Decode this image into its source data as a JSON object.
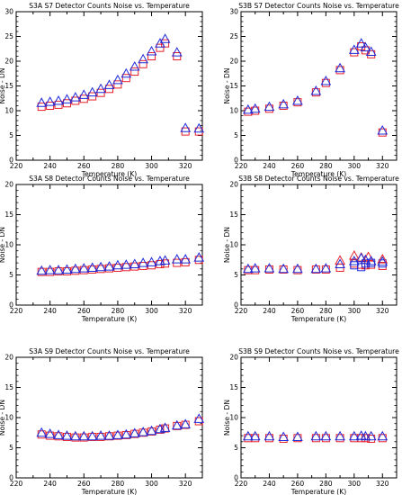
{
  "colors": {
    "red": "#e8202a",
    "blue": "#1f2bd9",
    "axis": "#000000"
  },
  "chart_data": [
    {
      "type": "scatter",
      "title": "S3A S7 Detector Counts Noise vs. Temperature",
      "xlabel": "Temperature (K)",
      "ylabel": "Noise - DN",
      "xlim": [
        220,
        330
      ],
      "ylim": [
        0,
        30
      ],
      "xticks": [
        220,
        240,
        260,
        280,
        300,
        320
      ],
      "yticks": [
        0,
        5,
        10,
        15,
        20,
        25,
        30
      ],
      "grid": false,
      "series": [
        {
          "marker": "square",
          "color": "red",
          "x": [
            235,
            240,
            245,
            250,
            255,
            260,
            265,
            270,
            275,
            280,
            285,
            290,
            295,
            300,
            305,
            308,
            315,
            320,
            328
          ],
          "y": [
            10.8,
            11.0,
            11.2,
            11.5,
            12.0,
            12.4,
            12.9,
            13.6,
            14.4,
            15.3,
            16.6,
            17.9,
            19.4,
            21.0,
            22.7,
            23.6,
            21.0,
            5.8,
            5.8
          ]
        },
        {
          "marker": "triangle",
          "color": "blue",
          "x": [
            235,
            240,
            245,
            250,
            255,
            260,
            265,
            270,
            275,
            280,
            285,
            290,
            295,
            300,
            305,
            308,
            315,
            320,
            328
          ],
          "y": [
            11.6,
            11.8,
            12.0,
            12.3,
            12.7,
            13.2,
            13.7,
            14.4,
            15.2,
            16.2,
            17.5,
            18.9,
            20.4,
            22.0,
            23.6,
            24.5,
            21.8,
            6.5,
            6.4
          ]
        }
      ]
    },
    {
      "type": "scatter",
      "title": "S3B S7 Detector Counts Noise vs. Temperature",
      "xlabel": "Temperature (K)",
      "ylabel": "Noise - DN",
      "xlim": [
        220,
        330
      ],
      "ylim": [
        0,
        30
      ],
      "xticks": [
        220,
        240,
        260,
        280,
        300,
        320
      ],
      "yticks": [
        0,
        5,
        10,
        15,
        20,
        25,
        30
      ],
      "grid": false,
      "series": [
        {
          "marker": "square",
          "color": "red",
          "x": [
            225,
            230,
            240,
            250,
            260,
            273,
            280,
            290,
            300,
            305,
            308,
            312,
            320
          ],
          "y": [
            9.8,
            10.0,
            10.4,
            11.0,
            11.7,
            13.7,
            15.6,
            18.2,
            21.8,
            23.0,
            22.2,
            21.4,
            5.6
          ]
        },
        {
          "marker": "triangle",
          "color": "blue",
          "x": [
            225,
            230,
            240,
            250,
            260,
            273,
            280,
            290,
            300,
            305,
            308,
            312,
            320
          ],
          "y": [
            10.2,
            10.4,
            10.8,
            11.3,
            12.0,
            14.0,
            16.0,
            18.6,
            22.3,
            23.6,
            22.8,
            21.9,
            6.0
          ]
        }
      ]
    },
    {
      "type": "scatter",
      "title": "S3A S8 Detector Counts Noise vs. Temperature",
      "xlabel": "Temperature (K)",
      "ylabel": "Noise - DN",
      "xlim": [
        220,
        330
      ],
      "ylim": [
        0,
        20
      ],
      "xticks": [
        220,
        240,
        260,
        280,
        300,
        320
      ],
      "yticks": [
        0,
        5,
        10,
        15,
        20
      ],
      "grid": false,
      "series": [
        {
          "marker": "square",
          "color": "red",
          "x": [
            235,
            240,
            245,
            250,
            255,
            260,
            265,
            270,
            275,
            280,
            285,
            290,
            295,
            300,
            305,
            308,
            315,
            320,
            328
          ],
          "y": [
            5.5,
            5.5,
            5.6,
            5.6,
            5.7,
            5.8,
            5.9,
            6.0,
            6.1,
            6.2,
            6.3,
            6.4,
            6.5,
            6.6,
            6.8,
            6.9,
            7.0,
            7.1,
            7.5
          ]
        },
        {
          "marker": "triangle",
          "color": "blue",
          "x": [
            235,
            240,
            245,
            250,
            255,
            260,
            265,
            270,
            275,
            280,
            285,
            290,
            295,
            300,
            305,
            308,
            315,
            320,
            328
          ],
          "y": [
            5.7,
            5.8,
            5.8,
            5.9,
            6.0,
            6.1,
            6.2,
            6.3,
            6.4,
            6.6,
            6.7,
            6.8,
            7.0,
            7.1,
            7.3,
            7.4,
            7.6,
            7.6,
            7.9
          ]
        }
      ]
    },
    {
      "type": "scatter",
      "title": "S3B S8 Detector Counts Noise vs. Temperature",
      "xlabel": "Temperature (K)",
      "ylabel": "Noise - DN",
      "xlim": [
        220,
        330
      ],
      "ylim": [
        0,
        20
      ],
      "xticks": [
        220,
        240,
        260,
        280,
        300,
        320
      ],
      "yticks": [
        0,
        5,
        10,
        15,
        20
      ],
      "grid": false,
      "series": [
        {
          "marker": "square",
          "color": "red",
          "x": [
            225,
            230,
            240,
            250,
            260,
            273,
            280,
            290,
            300,
            305,
            308,
            312,
            320
          ],
          "y": [
            5.8,
            5.8,
            5.9,
            5.9,
            5.8,
            5.9,
            5.9,
            6.2,
            6.9,
            6.7,
            6.6,
            6.7,
            6.5
          ]
        },
        {
          "marker": "square",
          "color": "blue",
          "x": [
            300,
            305,
            308,
            312,
            320
          ],
          "y": [
            6.6,
            6.3,
            6.9,
            7.0,
            6.9
          ]
        },
        {
          "marker": "triangle",
          "color": "red",
          "x": [
            290,
            300,
            305,
            310,
            320
          ],
          "y": [
            7.4,
            8.2,
            7.9,
            8.0,
            7.6
          ]
        },
        {
          "marker": "triangle",
          "color": "blue",
          "x": [
            225,
            230,
            240,
            250,
            260,
            273,
            280,
            290,
            300,
            305,
            308,
            312,
            320
          ],
          "y": [
            6.0,
            6.1,
            6.1,
            6.0,
            6.0,
            6.0,
            6.1,
            6.8,
            7.3,
            7.8,
            7.5,
            7.3,
            7.2
          ]
        }
      ]
    },
    {
      "type": "scatter",
      "title": "S3A S9 Detector Counts Noise vs. Temperature",
      "xlabel": "Temperature (K)",
      "ylabel": "Noise - DN",
      "xlim": [
        220,
        330
      ],
      "ylim": [
        0,
        20
      ],
      "xticks": [
        220,
        240,
        260,
        280,
        300,
        320
      ],
      "yticks": [
        0,
        5,
        10,
        15,
        20
      ],
      "grid": false,
      "series": [
        {
          "marker": "square",
          "color": "red",
          "x": [
            235,
            240,
            245,
            250,
            255,
            260,
            265,
            270,
            275,
            280,
            285,
            290,
            295,
            300,
            305,
            308,
            315,
            320,
            328
          ],
          "y": [
            7.2,
            7.0,
            6.9,
            6.8,
            6.7,
            6.7,
            6.8,
            6.8,
            6.9,
            7.0,
            7.1,
            7.3,
            7.5,
            7.7,
            8.0,
            8.2,
            8.6,
            8.8,
            9.4
          ]
        },
        {
          "marker": "triangle",
          "color": "blue",
          "x": [
            235,
            240,
            245,
            250,
            255,
            260,
            265,
            270,
            275,
            280,
            285,
            290,
            295,
            300,
            305,
            308,
            315,
            320,
            328
          ],
          "y": [
            7.5,
            7.3,
            7.1,
            7.0,
            6.9,
            6.9,
            6.9,
            7.0,
            7.0,
            7.1,
            7.2,
            7.4,
            7.6,
            7.8,
            8.1,
            8.3,
            8.7,
            8.9,
            9.8
          ]
        }
      ]
    },
    {
      "type": "scatter",
      "title": "S3B S9 Detector Counts Noise vs. Temperature",
      "xlabel": "Temperature (K)",
      "ylabel": "Noise - DN",
      "xlim": [
        220,
        330
      ],
      "ylim": [
        0,
        20
      ],
      "xticks": [
        220,
        240,
        260,
        280,
        300,
        320
      ],
      "yticks": [
        0,
        5,
        10,
        15,
        20
      ],
      "grid": false,
      "series": [
        {
          "marker": "square",
          "color": "red",
          "x": [
            225,
            230,
            240,
            250,
            260,
            273,
            280,
            290,
            300,
            305,
            308,
            312,
            320
          ],
          "y": [
            6.6,
            6.6,
            6.6,
            6.5,
            6.6,
            6.6,
            6.6,
            6.6,
            6.6,
            6.6,
            6.6,
            6.5,
            6.6
          ]
        },
        {
          "marker": "triangle",
          "color": "blue",
          "x": [
            225,
            230,
            240,
            250,
            260,
            273,
            280,
            290,
            300,
            305,
            308,
            312,
            320
          ],
          "y": [
            6.9,
            6.9,
            6.9,
            6.8,
            6.8,
            6.9,
            6.9,
            6.9,
            6.9,
            7.0,
            6.9,
            6.9,
            6.9
          ]
        }
      ]
    }
  ]
}
